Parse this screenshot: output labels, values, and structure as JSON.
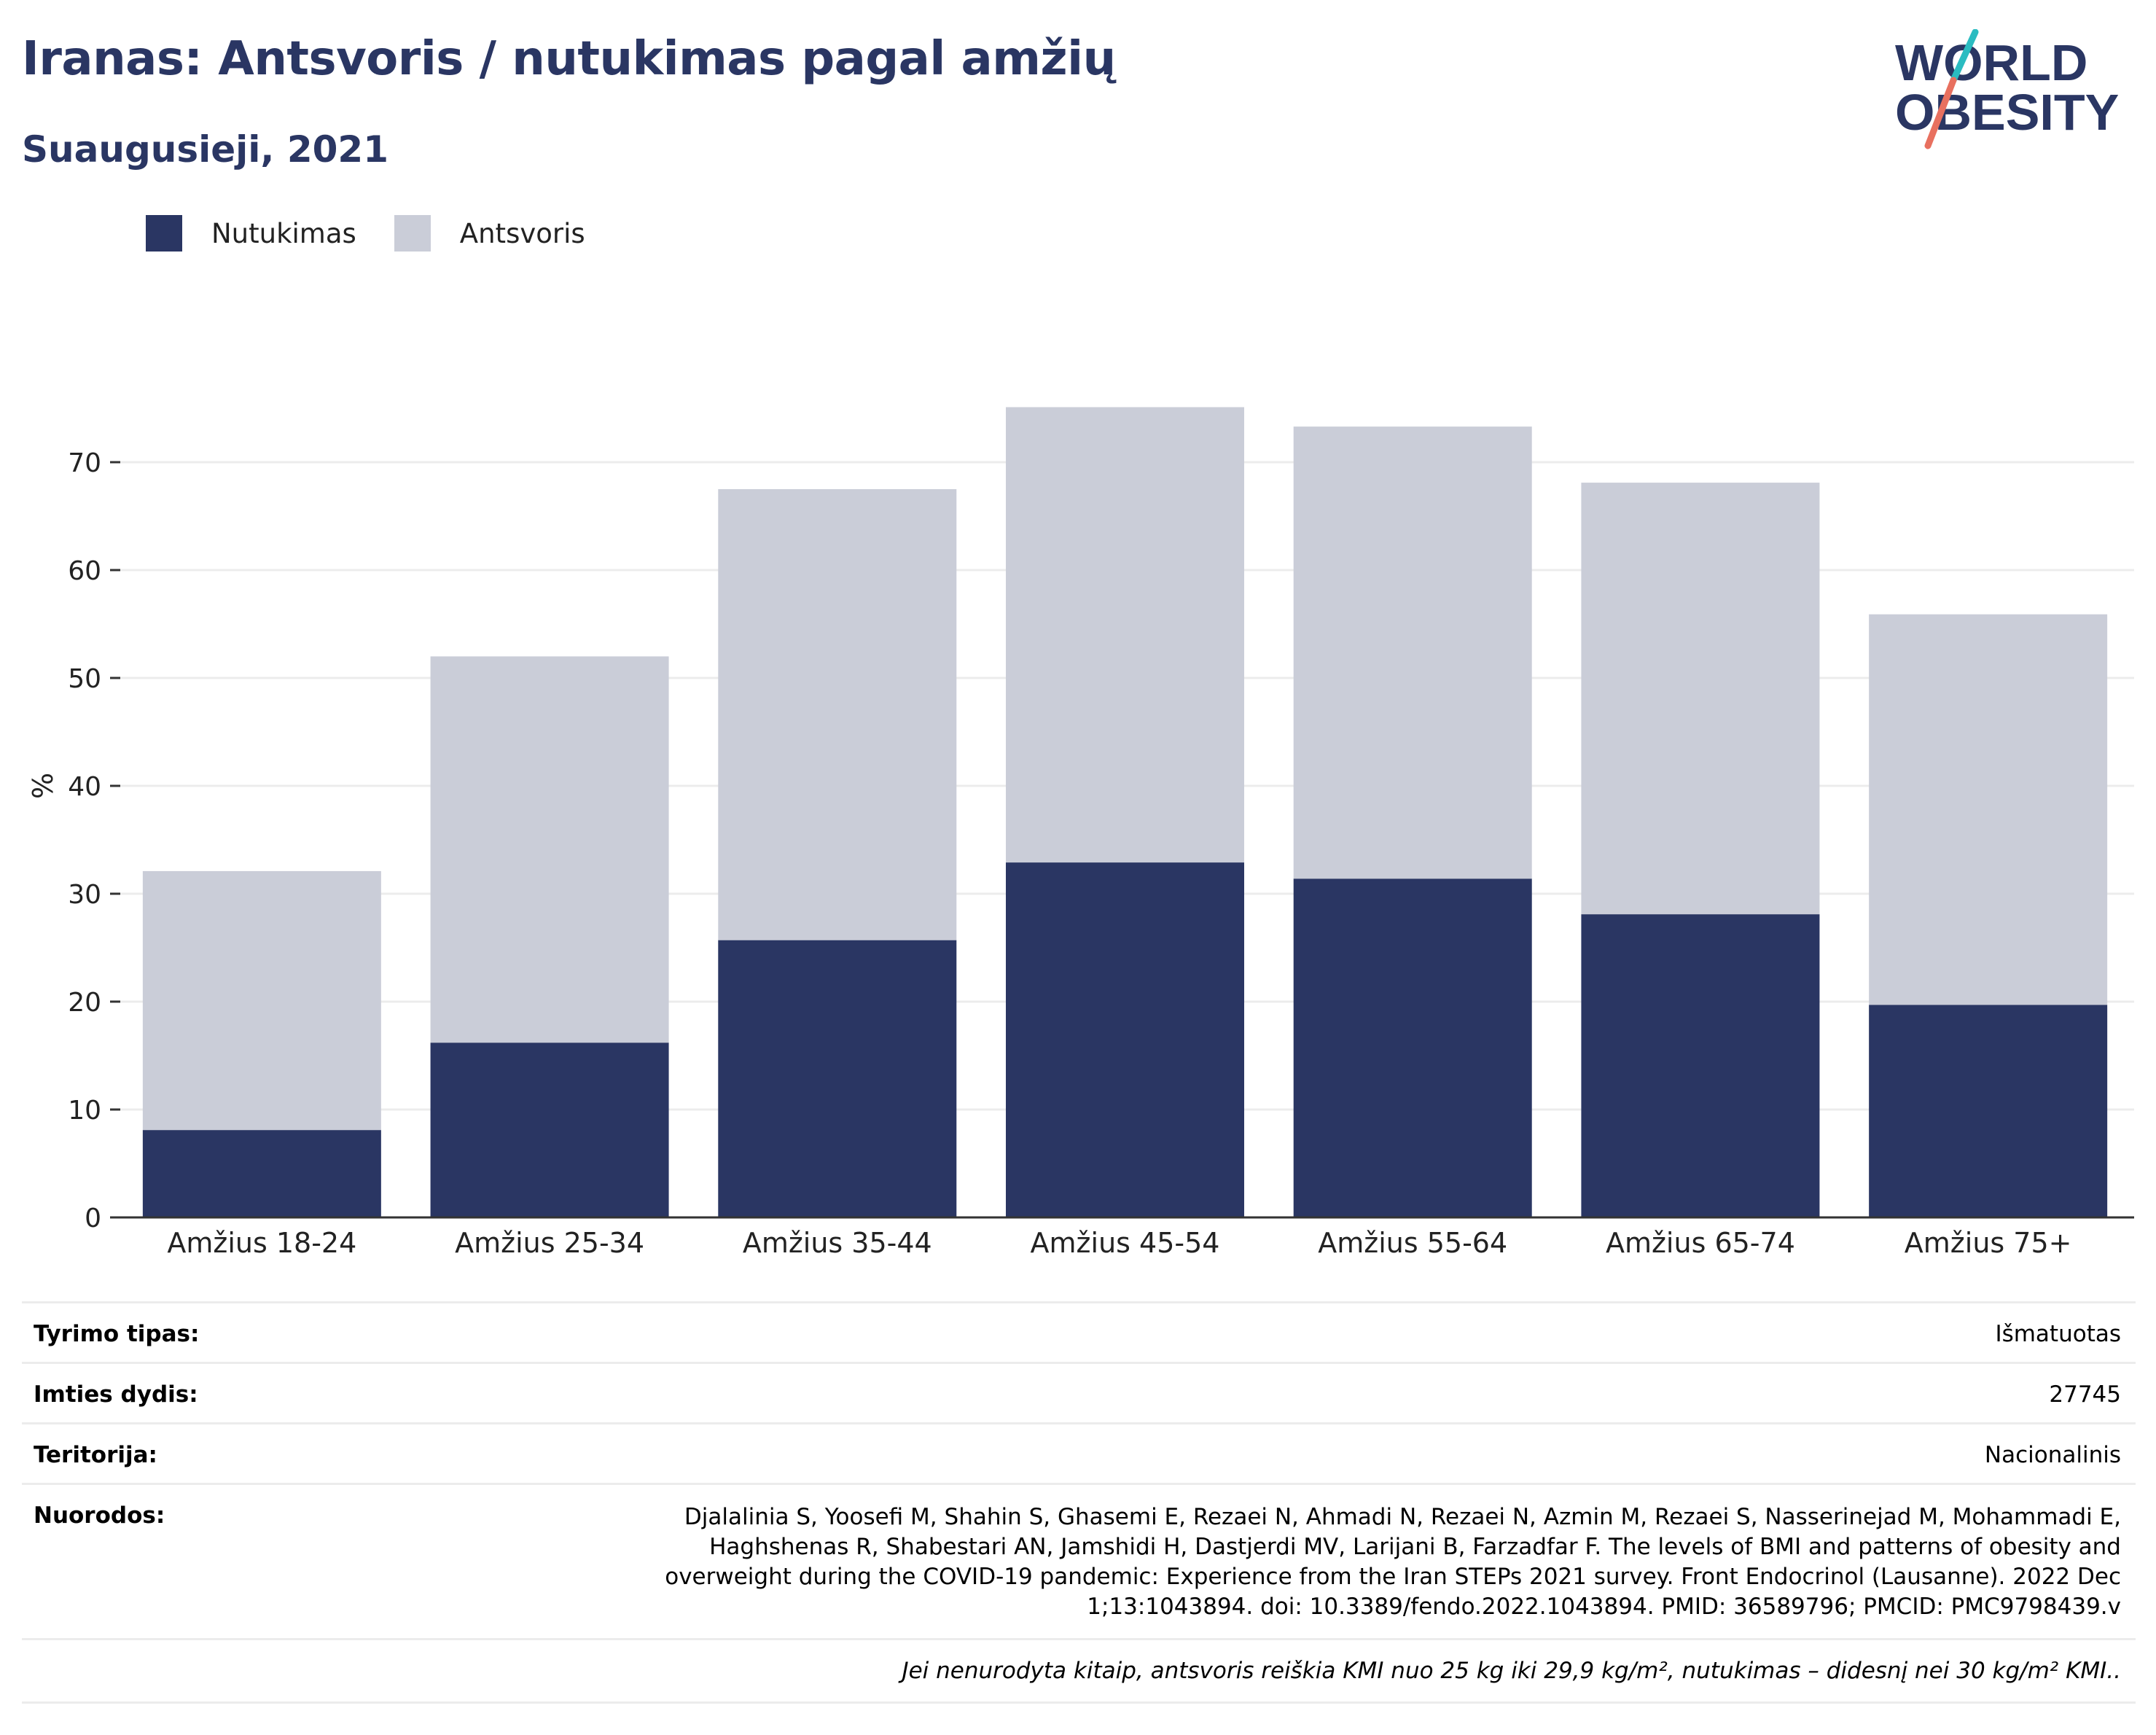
{
  "header": {
    "title": "Iranas: Antsvoris / nutukimas pagal amžių",
    "subtitle": "Suaugusieji, 2021",
    "logo_line1": "WORLD",
    "logo_line2": "OBESITY"
  },
  "legend": {
    "obesity": "Nutukimas",
    "overweight": "Antsvoris"
  },
  "colors": {
    "obesity": "#2a3663",
    "overweight": "#cacdd8",
    "title": "#2a3663",
    "logo_teal": "#2bbcc1",
    "logo_coral": "#e8705f"
  },
  "chart_data": {
    "type": "bar",
    "stacked": true,
    "categories": [
      "Amžius 18-24",
      "Amžius 25-34",
      "Amžius 35-44",
      "Amžius 45-54",
      "Amžius 55-64",
      "Amžius 65-74",
      "Amžius 75+"
    ],
    "series": [
      {
        "name": "Nutukimas",
        "values": [
          8.1,
          16.2,
          25.7,
          32.9,
          31.4,
          28.1,
          19.7
        ]
      },
      {
        "name": "Antsvoris",
        "values": [
          24.0,
          35.8,
          41.8,
          42.2,
          41.9,
          40.0,
          36.2
        ]
      }
    ],
    "ylabel": "%",
    "yticks": [
      0,
      10,
      20,
      30,
      40,
      50,
      60,
      70
    ],
    "ylim": [
      0,
      80
    ],
    "grid": true,
    "legend_position": "top-left"
  },
  "info": {
    "rows": [
      {
        "label": "Tyrimo tipas:",
        "value": "Išmatuotas"
      },
      {
        "label": "Imties dydis:",
        "value": "27745"
      },
      {
        "label": "Teritorija:",
        "value": "Nacionalinis"
      },
      {
        "label": "Nuorodos:",
        "value": "Djalalinia S, Yoosefi M, Shahin S, Ghasemi E, Rezaei N, Ahmadi N, Rezaei N, Azmin M, Rezaei S, Nasserinejad M, Mohammadi E, Haghshenas R, Shabestari AN, Jamshidi H, Dastjerdi MV, Larijani B, Farzadfar F. The levels of BMI and patterns of obesity and overweight during the COVID-19 pandemic: Experience from the Iran STEPs 2021 survey. Front Endocrinol (Lausanne). 2022 Dec 1;13:1043894. doi: 10.3389/fendo.2022.1043894. PMID: 36589796; PMCID: PMC9798439.v"
      }
    ],
    "note": "Jei nenurodyta kitaip, antsvoris reiškia KMI nuo 25 kg iki 29,9 kg/m², nutukimas – didesnį nei 30 kg/m² KMI.."
  }
}
